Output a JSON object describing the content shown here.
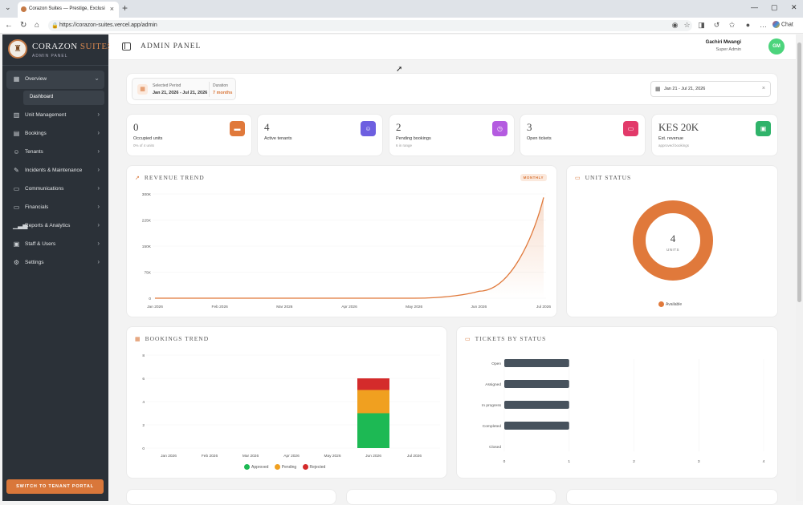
{
  "browser": {
    "tab_title": "Corazon Suites — Prestige, Exclusi",
    "url": "https://corazon-suites.vercel.app/admin",
    "chat_label": "Chat"
  },
  "brand": {
    "name_main": "CORAZON ",
    "name_accent": "SUITES",
    "subtitle": "ADMIN PANEL"
  },
  "sidebar": {
    "items": [
      {
        "label": "Overview",
        "icon": "grid-icon",
        "active": true
      },
      {
        "label": "Unit Management",
        "icon": "building-icon"
      },
      {
        "label": "Bookings",
        "icon": "calendar-icon"
      },
      {
        "label": "Tenants",
        "icon": "users-icon"
      },
      {
        "label": "Incidents & Maintenance",
        "icon": "wrench-icon"
      },
      {
        "label": "Communications",
        "icon": "message-icon"
      },
      {
        "label": "Financials",
        "icon": "card-icon"
      },
      {
        "label": "Reports & Analytics",
        "icon": "chart-icon"
      },
      {
        "label": "Staff & Users",
        "icon": "id-card-icon"
      },
      {
        "label": "Settings",
        "icon": "gear-icon"
      }
    ],
    "sub_item": "Dashboard",
    "portal_button": "SWITCH TO TENANT PORTAL"
  },
  "header": {
    "title": "ADMIN PANEL",
    "user_name": "Gachiri Mwangi",
    "user_role": "Super Admin",
    "avatar": "GM"
  },
  "period": {
    "label": "Selected Period",
    "value": "Jan 21, 2026 - Jul 21, 2026",
    "duration_label": "Duration",
    "duration_value": "7 months"
  },
  "date_range": "Jan 21 - Jul 21, 2026",
  "stats": [
    {
      "value": "0",
      "label": "Occupied units",
      "sub": "0% of 4 units",
      "color": "#e0793b",
      "icon": "bed-icon"
    },
    {
      "value": "4",
      "label": "Active tenants",
      "sub": "",
      "color": "#6d5fe0",
      "icon": "people-icon"
    },
    {
      "value": "2",
      "label": "Pending bookings",
      "sub": "6 in range",
      "color": "#b45be0",
      "icon": "calendar-clock-icon"
    },
    {
      "value": "3",
      "label": "Open tickets",
      "sub": "",
      "color": "#e23a6a",
      "icon": "ticket-icon"
    },
    {
      "value": "KES 20K",
      "label": "Est. revenue",
      "sub": "approved bookings",
      "color": "#2fb36a",
      "icon": "wallet-icon"
    }
  ],
  "revenue": {
    "title": "REVENUE TREND",
    "badge": "MONTHLY",
    "y_ticks": [
      "300K",
      "225K",
      "150K",
      "75K",
      "0"
    ],
    "x_ticks": [
      "Jan 2026",
      "Feb 2026",
      "Mar 2026",
      "Apr 2026",
      "May 2026",
      "Jun 2026",
      "Jul 2026"
    ]
  },
  "unit_status": {
    "title": "UNIT STATUS",
    "center_value": "4",
    "center_label": "UNITS",
    "legend": "Available"
  },
  "bookings": {
    "title": "BOOKINGS TREND",
    "y_ticks": [
      "8",
      "6",
      "4",
      "2",
      "0"
    ],
    "x_ticks": [
      "Jan 2026",
      "Feb 2026",
      "Mar 2026",
      "Apr 2026",
      "May 2026",
      "Jun 2026",
      "Jul 2026"
    ],
    "legend": [
      "Approved",
      "Pending",
      "Rejected"
    ],
    "legend_colors": [
      "#1db954",
      "#f0a020",
      "#d42b2b"
    ]
  },
  "tickets": {
    "title": "TICKETS BY STATUS",
    "categories": [
      "Open",
      "Assigned",
      "In progress",
      "Completed",
      "Closed"
    ],
    "x_ticks": [
      "0",
      "1",
      "2",
      "3",
      "4"
    ]
  },
  "chart_data": [
    {
      "type": "line",
      "title": "REVENUE TREND",
      "x": [
        "Jan 2026",
        "Feb 2026",
        "Mar 2026",
        "Apr 2026",
        "May 2026",
        "Jun 2026",
        "Jul 2026"
      ],
      "values": [
        0,
        0,
        0,
        0,
        0,
        20000,
        290000
      ],
      "ylim": [
        0,
        300000
      ]
    },
    {
      "type": "pie",
      "title": "UNIT STATUS",
      "labels": [
        "Available"
      ],
      "values": [
        4
      ]
    },
    {
      "type": "bar",
      "title": "BOOKINGS TREND",
      "categories": [
        "Jan 2026",
        "Feb 2026",
        "Mar 2026",
        "Apr 2026",
        "May 2026",
        "Jun 2026",
        "Jul 2026"
      ],
      "series": [
        {
          "name": "Approved",
          "values": [
            0,
            0,
            0,
            0,
            0,
            3,
            0
          ]
        },
        {
          "name": "Pending",
          "values": [
            0,
            0,
            0,
            0,
            0,
            2,
            0
          ]
        },
        {
          "name": "Rejected",
          "values": [
            0,
            0,
            0,
            0,
            0,
            1,
            0
          ]
        }
      ],
      "ylim": [
        0,
        8
      ]
    },
    {
      "type": "bar",
      "title": "TICKETS BY STATUS",
      "categories": [
        "Open",
        "Assigned",
        "In progress",
        "Completed",
        "Closed"
      ],
      "values": [
        1,
        1,
        1,
        1,
        0
      ],
      "xlim": [
        0,
        4
      ]
    }
  ]
}
